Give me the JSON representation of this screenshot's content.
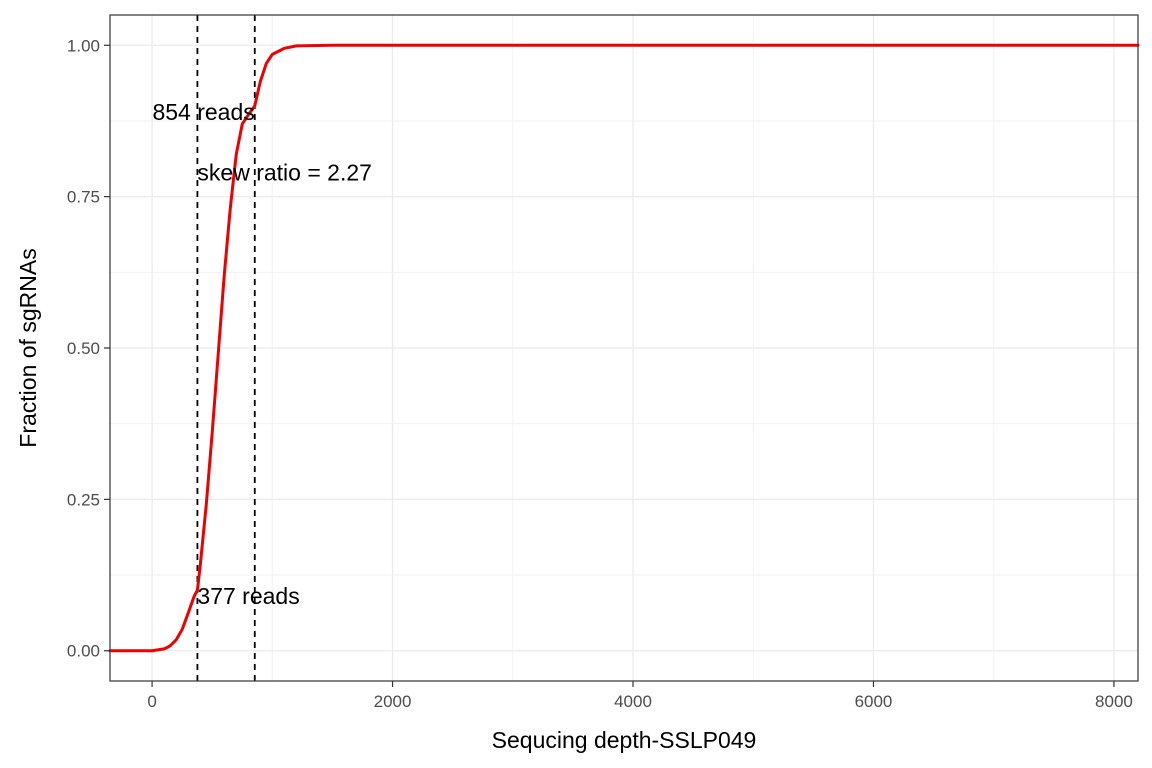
{
  "chart_data": {
    "type": "line",
    "title": "",
    "xlabel": "Sequcing depth-SSLP049",
    "ylabel": "Fraction of sgRNAs",
    "xlim": [
      -350,
      8200
    ],
    "ylim": [
      -0.05,
      1.05
    ],
    "x_ticks": [
      0,
      2000,
      4000,
      6000,
      8000
    ],
    "x_tick_labels": [
      "0",
      "2000",
      "4000",
      "6000",
      "8000"
    ],
    "y_ticks": [
      0,
      0.25,
      0.5,
      0.75,
      1
    ],
    "y_tick_labels": [
      "0.00",
      "0.25",
      "0.50",
      "0.75",
      "1.00"
    ],
    "grid": true,
    "legend": "none",
    "series": [
      {
        "color": "#ee0000",
        "x": [
          -350,
          0,
          100,
          150,
          200,
          250,
          300,
          350,
          377,
          400,
          450,
          500,
          550,
          600,
          650,
          700,
          750,
          800,
          854,
          900,
          950,
          1000,
          1100,
          1200,
          1500,
          3500,
          8200
        ],
        "y": [
          0,
          0,
          0.003,
          0.008,
          0.018,
          0.035,
          0.062,
          0.09,
          0.1,
          0.14,
          0.24,
          0.36,
          0.49,
          0.62,
          0.73,
          0.82,
          0.87,
          0.885,
          0.9,
          0.94,
          0.97,
          0.985,
          0.995,
          0.999,
          1.0,
          1.0,
          1.0
        ]
      }
    ],
    "vlines": [
      {
        "x": 377,
        "style": "dashed",
        "color": "#000000"
      },
      {
        "x": 854,
        "style": "dashed",
        "color": "#000000"
      }
    ],
    "annotations": [
      {
        "text": "854 reads",
        "x": 854,
        "y": 0.89,
        "anchor": "end"
      },
      {
        "text": "skew ratio = 2.27",
        "x": 377,
        "y": 0.79,
        "anchor": "start"
      },
      {
        "text": "377 reads",
        "x": 377,
        "y": 0.09,
        "anchor": "start"
      }
    ]
  }
}
